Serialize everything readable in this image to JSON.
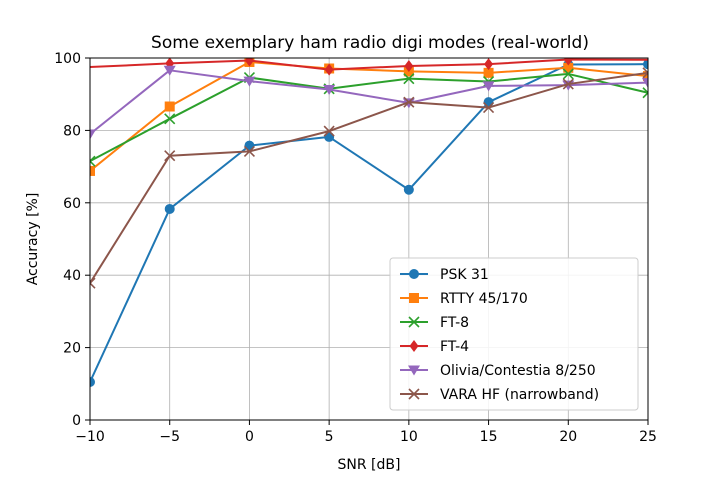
{
  "chart_data": {
    "type": "line",
    "title": "Some exemplary ham radio digi modes (real-world)",
    "xlabel": "SNR [dB]",
    "ylabel": "Accuracy [%]",
    "xlim": [
      -10,
      25
    ],
    "ylim": [
      0,
      100
    ],
    "grid": true,
    "legend_position": "lower-right",
    "x": [
      -10,
      -5,
      0,
      5,
      10,
      15,
      20,
      25
    ],
    "x_ticks": [
      -10,
      -5,
      0,
      5,
      10,
      15,
      20,
      25
    ],
    "x_tick_labels": [
      "−10",
      "−5",
      "0",
      "5",
      "10",
      "15",
      "20",
      "25"
    ],
    "y_ticks": [
      0,
      20,
      40,
      60,
      80,
      100
    ],
    "y_tick_labels": [
      "0",
      "20",
      "40",
      "60",
      "80",
      "100"
    ],
    "series": [
      {
        "name": "PSK 31",
        "color": "#1f77b4",
        "marker": "circle",
        "values": [
          10.5,
          58.3,
          75.8,
          78.2,
          63.6,
          87.8,
          98.2,
          98.3
        ]
      },
      {
        "name": "RTTY 45/170",
        "color": "#ff7f0e",
        "marker": "square",
        "values": [
          68.8,
          86.6,
          98.9,
          97.1,
          96.3,
          95.9,
          97.3,
          95.0
        ]
      },
      {
        "name": "FT-8",
        "color": "#2ca02c",
        "marker": "x",
        "values": [
          71.5,
          83.2,
          94.6,
          91.5,
          94.3,
          93.5,
          95.6,
          90.4
        ]
      },
      {
        "name": "FT-4",
        "color": "#d62728",
        "marker": "diamond",
        "values": null
      },
      {
        "name": "Olivia/Contestia 8/250",
        "color": "#9467bd",
        "marker": "triangle-down",
        "values": [
          79.0,
          96.6,
          93.6,
          91.3,
          87.6,
          92.3,
          92.5,
          93.2
        ]
      },
      {
        "name": "VARA HF (narrowband)",
        "color": "#8c564b",
        "marker": "x",
        "values": [
          37.8,
          73.0,
          74.2,
          79.8,
          87.8,
          86.3,
          92.8,
          95.9
        ]
      }
    ]
  }
}
